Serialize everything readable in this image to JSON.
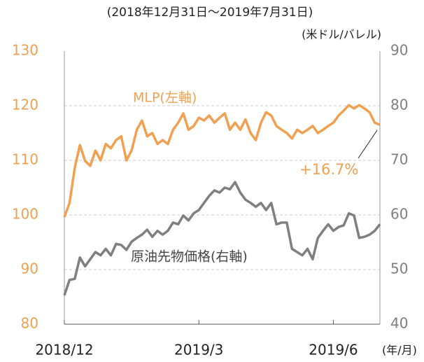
{
  "chart_data": {
    "type": "line",
    "subtitle": "(2018年12月31日～2019年7月31日)",
    "y2_label": "(米ドル/バレル)",
    "x_label": "(年/月)",
    "annotations": [
      "MLP(左軸)",
      "原油先物価格(右軸)",
      "+16.7%"
    ],
    "categories": [
      "2018/12",
      null,
      null,
      null,
      null,
      null,
      null,
      null,
      null,
      null,
      null,
      null,
      null,
      null,
      null,
      null,
      null,
      null,
      null,
      null,
      null,
      null,
      null,
      null,
      null,
      null,
      "2019/3",
      null,
      null,
      null,
      null,
      null,
      null,
      null,
      null,
      null,
      null,
      null,
      null,
      null,
      null,
      null,
      null,
      null,
      null,
      null,
      null,
      null,
      null,
      null,
      null,
      null,
      "2019/6",
      null,
      null,
      null,
      null,
      null,
      null,
      null,
      null,
      null
    ],
    "ylim": [
      80,
      130
    ],
    "yticks": [
      80,
      90,
      100,
      110,
      120,
      130
    ],
    "y2lim": [
      40,
      90
    ],
    "y2ticks": [
      40,
      50,
      60,
      70,
      80,
      90
    ],
    "grid": true,
    "series": [
      {
        "name": "MLP",
        "color": "#f0a050",
        "values": [
          99.6,
          102.2,
          108.6,
          112.8,
          109.9,
          109,
          111.8,
          110,
          113,
          112.2,
          113.7,
          114.4,
          110,
          111.8,
          115.6,
          117.3,
          114.4,
          115,
          113,
          113.7,
          113,
          115.6,
          116.9,
          118.6,
          115.6,
          116.3,
          117.8,
          117.3,
          118.2,
          116.9,
          117.8,
          118.6,
          115.6,
          116.9,
          115.6,
          117.5,
          115,
          113.7,
          116.9,
          118.8,
          118.2,
          116.3,
          115.6,
          115,
          114,
          115.6,
          115,
          115.6,
          116.3,
          115,
          115.6,
          116.3,
          116.9,
          118.2,
          119.1,
          120.1,
          119.5,
          120.1,
          119.5,
          118.8,
          116.9,
          116.5
        ]
      },
      {
        "name": "原油先物価格",
        "color": "#7f7f7f",
        "axis": "y2",
        "values": [
          45.3,
          48.1,
          48.3,
          52.2,
          50.6,
          51.9,
          53.2,
          52.6,
          53.8,
          52.6,
          54.7,
          54.5,
          53.6,
          55.1,
          55.8,
          56.4,
          57.3,
          56,
          57.1,
          56.4,
          57.1,
          58.6,
          58.3,
          59.9,
          59,
          60.3,
          60.9,
          62.2,
          63.5,
          64.5,
          64.1,
          65,
          64.7,
          66,
          64.1,
          62.8,
          62.2,
          61.5,
          62.2,
          60.9,
          62.2,
          58.3,
          58.6,
          58.6,
          53.8,
          53.2,
          52.6,
          53.8,
          51.9,
          55.8,
          57.1,
          58.3,
          57.1,
          57.8,
          58.1,
          60.3,
          59.9,
          55.8,
          56,
          56.4,
          57.1,
          58.3
        ]
      }
    ]
  }
}
